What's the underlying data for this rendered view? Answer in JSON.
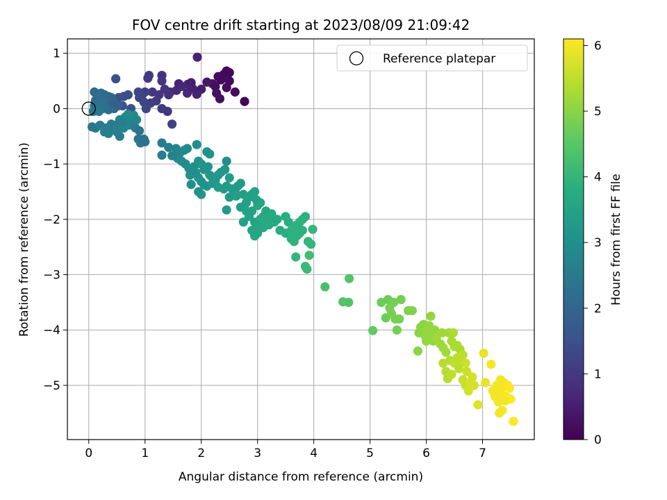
{
  "chart_data": {
    "type": "scatter",
    "title": "FOV centre drift starting at 2023/08/09 21:09:42",
    "xlabel": "Angular distance from reference (arcmin)",
    "ylabel": "Rotation from reference (arcmin)",
    "xlim": [
      -0.38,
      7.92
    ],
    "ylim": [
      -5.98,
      1.26
    ],
    "x_ticks": [
      0,
      1,
      2,
      3,
      4,
      5,
      6,
      7
    ],
    "y_ticks": [
      1,
      0,
      -1,
      -2,
      -3,
      -4,
      -5
    ],
    "x_tick_labels": [
      "0",
      "1",
      "2",
      "3",
      "4",
      "5",
      "6",
      "7"
    ],
    "y_tick_labels": [
      "1",
      "0",
      "−1",
      "−2",
      "−3",
      "−4",
      "−5"
    ],
    "grid": true,
    "legend": {
      "position": "top-right",
      "entries": [
        "Reference platepar"
      ]
    },
    "reference_point": {
      "x": 0,
      "y": 0
    },
    "colorbar": {
      "label": "Hours from first FF file",
      "range": [
        0,
        6.1
      ],
      "ticks": [
        0,
        1,
        2,
        3,
        4,
        5,
        6
      ],
      "tick_labels": [
        "0",
        "1",
        "2",
        "3",
        "4",
        "5",
        "6"
      ],
      "colormap": "viridis"
    },
    "points": [
      [
        1.93,
        0.93,
        0.6
      ],
      [
        2.45,
        0.68,
        0.1
      ],
      [
        2.5,
        0.65,
        0.1
      ],
      [
        2.4,
        0.62,
        0.1
      ],
      [
        2.3,
        0.58,
        0.2
      ],
      [
        2.5,
        0.5,
        0.2
      ],
      [
        2.35,
        0.52,
        0.15
      ],
      [
        2.2,
        0.45,
        0.3
      ],
      [
        2.1,
        0.48,
        0.4
      ],
      [
        2.6,
        0.3,
        0.2
      ],
      [
        2.27,
        0.28,
        0.3
      ],
      [
        2.25,
        0.4,
        0.25
      ],
      [
        2.33,
        0.18,
        0.25
      ],
      [
        2.77,
        0.13,
        0.05
      ],
      [
        2.45,
        0.38,
        0.2
      ],
      [
        2.0,
        0.35,
        0.5
      ],
      [
        1.76,
        0.44,
        0.6
      ],
      [
        1.82,
        0.47,
        0.55
      ],
      [
        1.65,
        0.4,
        0.7
      ],
      [
        1.56,
        0.33,
        0.75
      ],
      [
        1.45,
        0.3,
        0.8
      ],
      [
        1.6,
        0.45,
        0.65
      ],
      [
        1.75,
        0.28,
        0.7
      ],
      [
        1.85,
        0.36,
        0.6
      ],
      [
        1.92,
        0.26,
        0.6
      ],
      [
        1.3,
        0.6,
        0.9
      ],
      [
        1.07,
        0.6,
        1.0
      ],
      [
        1.05,
        0.55,
        1.0
      ],
      [
        1.3,
        0.5,
        0.95
      ],
      [
        1.25,
        0.25,
        1.0
      ],
      [
        1.35,
        0.35,
        0.95
      ],
      [
        1.13,
        0.3,
        1.05
      ],
      [
        1.42,
        0.25,
        0.9
      ],
      [
        1.2,
        0.14,
        1.05
      ],
      [
        1.1,
        0.1,
        1.1
      ],
      [
        1.3,
        0.0,
        1.05
      ],
      [
        1.4,
        -0.05,
        1.0
      ],
      [
        1.48,
        -0.28,
        1.2
      ],
      [
        1.0,
        0.3,
        1.2
      ],
      [
        0.95,
        0.25,
        1.25
      ],
      [
        0.9,
        0.2,
        1.3
      ],
      [
        0.98,
        0.12,
        1.25
      ],
      [
        1.02,
        0.0,
        1.3
      ],
      [
        0.88,
        0.3,
        1.3
      ],
      [
        0.48,
        0.54,
        1.5
      ],
      [
        0.62,
        0.22,
        1.5
      ],
      [
        0.7,
        0.25,
        1.45
      ],
      [
        0.53,
        0.2,
        1.6
      ],
      [
        0.6,
        0.05,
        1.6
      ],
      [
        0.75,
        0.0,
        1.5
      ],
      [
        0.1,
        0.3,
        2.1
      ],
      [
        0.15,
        0.25,
        2.1
      ],
      [
        0.22,
        0.28,
        2.2
      ],
      [
        0.28,
        0.25,
        2.1
      ],
      [
        0.35,
        0.22,
        2.1
      ],
      [
        0.4,
        0.2,
        2.0
      ],
      [
        0.12,
        0.15,
        2.1
      ],
      [
        0.2,
        0.12,
        2.2
      ],
      [
        0.3,
        0.1,
        2.2
      ],
      [
        0.38,
        0.05,
        2.1
      ],
      [
        0.42,
        0.15,
        2.0
      ],
      [
        0.47,
        0.08,
        1.9
      ],
      [
        0.1,
        0.05,
        2.3
      ],
      [
        0.15,
        0.0,
        2.3
      ],
      [
        0.25,
        0.0,
        2.3
      ],
      [
        0.35,
        -0.02,
        2.2
      ],
      [
        0.45,
        0.0,
        2.1
      ],
      [
        0.52,
        0.05,
        1.9
      ],
      [
        0.08,
        -0.05,
        2.4
      ],
      [
        0.18,
        -0.05,
        2.4
      ],
      [
        0.06,
        -0.33,
        2.4
      ],
      [
        0.12,
        -0.35,
        2.4
      ],
      [
        0.2,
        -0.3,
        2.5
      ],
      [
        0.3,
        -0.35,
        2.5
      ],
      [
        0.28,
        -0.42,
        2.6
      ],
      [
        0.35,
        -0.45,
        2.6
      ],
      [
        0.42,
        -0.38,
        2.6
      ],
      [
        0.5,
        -0.42,
        2.6
      ],
      [
        0.55,
        -0.5,
        2.5
      ],
      [
        0.62,
        -0.35,
        2.7
      ],
      [
        0.7,
        -0.3,
        2.8
      ],
      [
        0.75,
        -0.25,
        2.8
      ],
      [
        0.65,
        -0.15,
        2.8
      ],
      [
        0.7,
        -0.1,
        2.9
      ],
      [
        0.8,
        -0.12,
        2.9
      ],
      [
        0.85,
        -0.2,
        2.8
      ],
      [
        0.78,
        -0.3,
        2.7
      ],
      [
        0.55,
        -0.2,
        2.7
      ],
      [
        0.48,
        -0.3,
        2.6
      ],
      [
        0.4,
        -0.28,
        2.5
      ],
      [
        0.6,
        -0.25,
        2.6
      ],
      [
        0.83,
        -0.35,
        2.5
      ],
      [
        0.88,
        -0.55,
        2.4
      ],
      [
        0.92,
        -0.62,
        2.4
      ],
      [
        1.0,
        -0.6,
        2.3
      ],
      [
        0.98,
        -0.55,
        2.3
      ],
      [
        0.9,
        -0.4,
        2.3
      ],
      [
        1.3,
        -0.62,
        2.5
      ],
      [
        1.42,
        -0.7,
        2.6
      ],
      [
        1.55,
        -0.72,
        2.7
      ],
      [
        1.62,
        -0.8,
        2.8
      ],
      [
        1.7,
        -0.75,
        2.8
      ],
      [
        1.75,
        -0.72,
        2.9
      ],
      [
        1.92,
        -0.65,
        3.0
      ],
      [
        2.1,
        -0.78,
        3.1
      ],
      [
        2.15,
        -0.82,
        3.1
      ],
      [
        1.3,
        -0.84,
        2.6
      ],
      [
        1.48,
        -0.85,
        2.7
      ],
      [
        1.58,
        -0.9,
        2.8
      ],
      [
        1.65,
        -0.95,
        2.9
      ],
      [
        1.72,
        -1.0,
        2.9
      ],
      [
        1.78,
        -1.08,
        3.0
      ],
      [
        1.8,
        -1.2,
        3.0
      ],
      [
        1.87,
        -1.05,
        3.0
      ],
      [
        1.95,
        -0.95,
        3.1
      ],
      [
        2.0,
        -1.0,
        3.1
      ],
      [
        2.05,
        -1.1,
        3.1
      ],
      [
        2.12,
        -1.05,
        3.1
      ],
      [
        2.15,
        -1.2,
        3.2
      ],
      [
        2.2,
        -1.25,
        3.2
      ],
      [
        1.9,
        -1.15,
        3.0
      ],
      [
        1.95,
        -1.25,
        3.1
      ],
      [
        2.0,
        -1.32,
        3.1
      ],
      [
        2.05,
        -1.38,
        3.1
      ],
      [
        2.1,
        -1.4,
        3.1
      ],
      [
        2.2,
        -1.35,
        3.2
      ],
      [
        2.25,
        -1.3,
        3.2
      ],
      [
        2.3,
        -1.2,
        3.2
      ],
      [
        2.35,
        -1.15,
        3.2
      ],
      [
        2.42,
        -1.1,
        3.2
      ],
      [
        2.3,
        -1.42,
        3.3
      ],
      [
        2.4,
        -1.45,
        3.3
      ],
      [
        2.45,
        -1.4,
        3.3
      ],
      [
        2.5,
        -1.25,
        3.3
      ],
      [
        2.45,
        -0.95,
        3.0
      ],
      [
        2.0,
        -1.55,
        3.2
      ],
      [
        1.82,
        -1.37,
        3.0
      ],
      [
        1.95,
        -1.5,
        3.1
      ],
      [
        2.5,
        -1.6,
        3.3
      ],
      [
        2.55,
        -1.45,
        3.3
      ],
      [
        2.6,
        -1.5,
        3.3
      ],
      [
        2.65,
        -1.4,
        3.3
      ],
      [
        2.7,
        -1.35,
        3.3
      ],
      [
        2.62,
        -1.58,
        3.4
      ],
      [
        2.75,
        -1.55,
        3.4
      ],
      [
        2.45,
        -1.83,
        3.3
      ],
      [
        2.7,
        -1.78,
        3.4
      ],
      [
        2.8,
        -1.7,
        3.4
      ],
      [
        2.85,
        -1.6,
        3.5
      ],
      [
        2.9,
        -1.55,
        3.4
      ],
      [
        2.95,
        -1.5,
        3.5
      ],
      [
        2.8,
        -1.85,
        3.5
      ],
      [
        2.85,
        -1.95,
        3.5
      ],
      [
        2.9,
        -1.85,
        3.5
      ],
      [
        3.0,
        -1.75,
        3.6
      ],
      [
        3.05,
        -1.7,
        3.6
      ],
      [
        2.75,
        -2.05,
        3.5
      ],
      [
        2.95,
        -2.05,
        3.5
      ],
      [
        3.0,
        -2.1,
        3.6
      ],
      [
        3.05,
        -2.0,
        3.6
      ],
      [
        3.1,
        -1.95,
        3.6
      ],
      [
        3.15,
        -1.85,
        3.6
      ],
      [
        3.2,
        -1.95,
        3.7
      ],
      [
        2.9,
        -2.2,
        3.6
      ],
      [
        2.95,
        -2.3,
        3.6
      ],
      [
        3.0,
        -2.25,
        3.6
      ],
      [
        3.1,
        -2.15,
        3.7
      ],
      [
        3.2,
        -2.1,
        3.7
      ],
      [
        3.3,
        -2.05,
        3.7
      ],
      [
        3.35,
        -2.0,
        3.7
      ],
      [
        3.1,
        -2.0,
        3.7
      ],
      [
        3.25,
        -1.9,
        3.7
      ],
      [
        2.98,
        -1.65,
        3.5
      ],
      [
        3.4,
        -2.2,
        3.8
      ],
      [
        3.55,
        -2.05,
        3.8
      ],
      [
        3.5,
        -1.95,
        3.8
      ],
      [
        3.5,
        -2.25,
        3.8
      ],
      [
        3.6,
        -2.2,
        3.9
      ],
      [
        3.65,
        -2.15,
        3.9
      ],
      [
        3.7,
        -2.1,
        3.9
      ],
      [
        3.75,
        -2.05,
        3.9
      ],
      [
        3.8,
        -2.0,
        3.9
      ],
      [
        3.85,
        -1.95,
        3.9
      ],
      [
        3.6,
        -2.35,
        3.9
      ],
      [
        3.65,
        -2.4,
        3.9
      ],
      [
        3.7,
        -2.3,
        3.9
      ],
      [
        3.75,
        -2.25,
        3.9
      ],
      [
        3.8,
        -2.2,
        3.9
      ],
      [
        3.9,
        -2.4,
        4.0
      ],
      [
        3.95,
        -2.45,
        4.0
      ],
      [
        3.98,
        -2.18,
        4.0
      ],
      [
        3.68,
        -2.68,
        4.0
      ],
      [
        3.85,
        -2.85,
        4.1
      ],
      [
        3.88,
        -2.9,
        4.1
      ],
      [
        3.92,
        -2.65,
        4.2
      ],
      [
        4.2,
        -3.22,
        4.3
      ],
      [
        4.63,
        -3.07,
        4.4
      ],
      [
        4.52,
        -3.49,
        4.4
      ],
      [
        4.62,
        -3.5,
        4.4
      ],
      [
        5.05,
        -4.01,
        4.6
      ],
      [
        5.2,
        -3.5,
        4.7
      ],
      [
        5.28,
        -3.78,
        4.7
      ],
      [
        5.32,
        -3.45,
        4.7
      ],
      [
        5.35,
        -3.6,
        4.8
      ],
      [
        5.38,
        -3.7,
        4.8
      ],
      [
        5.42,
        -3.5,
        4.8
      ],
      [
        5.45,
        -3.8,
        4.8
      ],
      [
        5.48,
        -4.0,
        4.8
      ],
      [
        5.52,
        -3.8,
        4.8
      ],
      [
        5.55,
        -3.45,
        4.8
      ],
      [
        5.68,
        -3.65,
        4.9
      ],
      [
        5.75,
        -3.65,
        4.9
      ],
      [
        5.85,
        -4.38,
        5.0
      ],
      [
        5.87,
        -4.05,
        5.0
      ],
      [
        5.9,
        -3.95,
        5.0
      ],
      [
        5.95,
        -3.9,
        5.0
      ],
      [
        5.98,
        -4.1,
        5.1
      ],
      [
        6.0,
        -4.2,
        5.1
      ],
      [
        6.02,
        -4.0,
        5.1
      ],
      [
        6.05,
        -3.92,
        5.1
      ],
      [
        6.08,
        -3.75,
        5.1
      ],
      [
        6.1,
        -4.1,
        5.1
      ],
      [
        6.12,
        -4.2,
        5.1
      ],
      [
        6.15,
        -4.0,
        5.1
      ],
      [
        6.18,
        -4.15,
        5.2
      ],
      [
        6.25,
        -4.25,
        5.2
      ],
      [
        6.28,
        -4.05,
        5.2
      ],
      [
        6.3,
        -4.32,
        5.2
      ],
      [
        6.35,
        -4.4,
        5.2
      ],
      [
        6.4,
        -4.05,
        5.2
      ],
      [
        6.45,
        -4.2,
        5.3
      ],
      [
        6.48,
        -4.05,
        5.3
      ],
      [
        6.5,
        -4.3,
        5.3
      ],
      [
        6.55,
        -4.28,
        5.3
      ],
      [
        6.6,
        -4.35,
        5.3
      ],
      [
        6.3,
        -4.6,
        5.4
      ],
      [
        6.35,
        -4.75,
        5.4
      ],
      [
        6.38,
        -4.88,
        5.4
      ],
      [
        6.42,
        -4.55,
        5.4
      ],
      [
        6.45,
        -4.8,
        5.5
      ],
      [
        6.5,
        -4.6,
        5.5
      ],
      [
        6.55,
        -4.5,
        5.5
      ],
      [
        6.58,
        -4.7,
        5.5
      ],
      [
        6.6,
        -4.55,
        5.5
      ],
      [
        6.65,
        -4.45,
        5.5
      ],
      [
        6.7,
        -4.6,
        5.6
      ],
      [
        6.72,
        -4.75,
        5.6
      ],
      [
        6.65,
        -4.9,
        5.6
      ],
      [
        6.7,
        -5.0,
        5.6
      ],
      [
        6.75,
        -5.1,
        5.7
      ],
      [
        6.78,
        -4.95,
        5.7
      ],
      [
        6.82,
        -4.85,
        5.7
      ],
      [
        6.85,
        -5.0,
        5.7
      ],
      [
        6.92,
        -5.35,
        5.8
      ],
      [
        7.02,
        -4.42,
        5.9
      ],
      [
        7.05,
        -4.95,
        5.9
      ],
      [
        7.15,
        -4.62,
        6.0
      ],
      [
        7.18,
        -5.1,
        6.0
      ],
      [
        7.22,
        -5.2,
        6.0
      ],
      [
        7.25,
        -5.0,
        6.0
      ],
      [
        7.28,
        -5.3,
        6.0
      ],
      [
        7.3,
        -5.15,
        6.0
      ],
      [
        7.32,
        -4.9,
        6.0
      ],
      [
        7.35,
        -5.05,
        6.0
      ],
      [
        7.38,
        -4.95,
        6.0
      ],
      [
        7.42,
        -5.2,
        6.1
      ],
      [
        7.45,
        -5.0,
        6.1
      ],
      [
        7.48,
        -5.05,
        6.1
      ],
      [
        7.5,
        -5.25,
        6.1
      ],
      [
        7.55,
        -5.65,
        6.1
      ],
      [
        7.3,
        -5.5,
        6.0
      ],
      [
        7.35,
        -5.45,
        6.0
      ],
      [
        7.4,
        -5.28,
        6.0
      ]
    ]
  }
}
